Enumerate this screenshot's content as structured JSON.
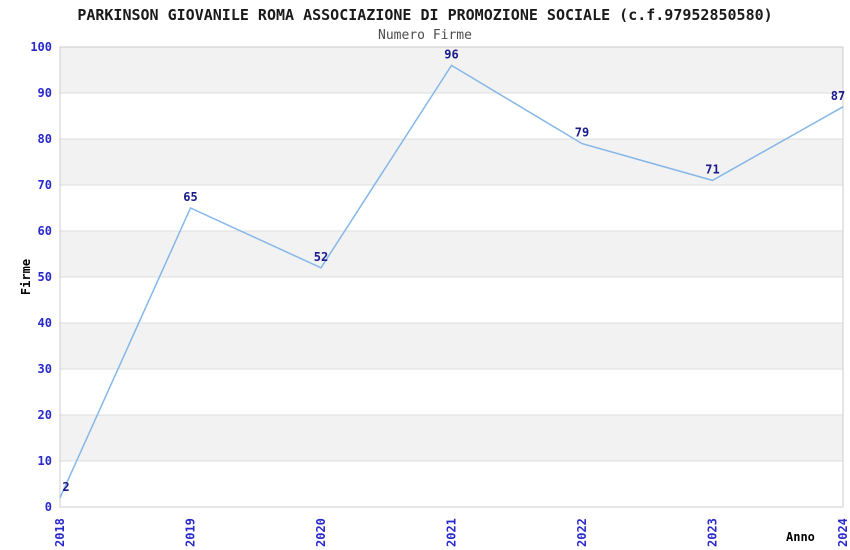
{
  "chart_data": {
    "type": "line",
    "title": "PARKINSON GIOVANILE ROMA ASSOCIAZIONE DI PROMOZIONE SOCIALE (c.f.97952850580)",
    "subtitle": "Numero Firme",
    "xlabel": "Anno",
    "ylabel": "Firme",
    "categories": [
      "2018",
      "2019",
      "2020",
      "2021",
      "2022",
      "2023",
      "2024"
    ],
    "series": [
      {
        "name": "Numero Firme",
        "values": [
          2,
          65,
          52,
          96,
          79,
          71,
          87
        ]
      }
    ],
    "ylim": [
      0,
      100
    ],
    "ytick_step": 10,
    "yticks": [
      0,
      10,
      20,
      30,
      40,
      50,
      60,
      70,
      80,
      90,
      100
    ],
    "grid": true,
    "legend_position": "none",
    "band_fill_alternating": true,
    "colors": {
      "line": "#85b7e8",
      "tick_label": "#2828cc",
      "data_label": "#1a1a8c",
      "band": "#f2f2f2",
      "gridline": "#dddddd",
      "border": "#cccccc",
      "title": "#1a1a1a",
      "subtitle": "#4d4d4d",
      "axis_label": "#000000",
      "background": "#ffffff"
    }
  }
}
